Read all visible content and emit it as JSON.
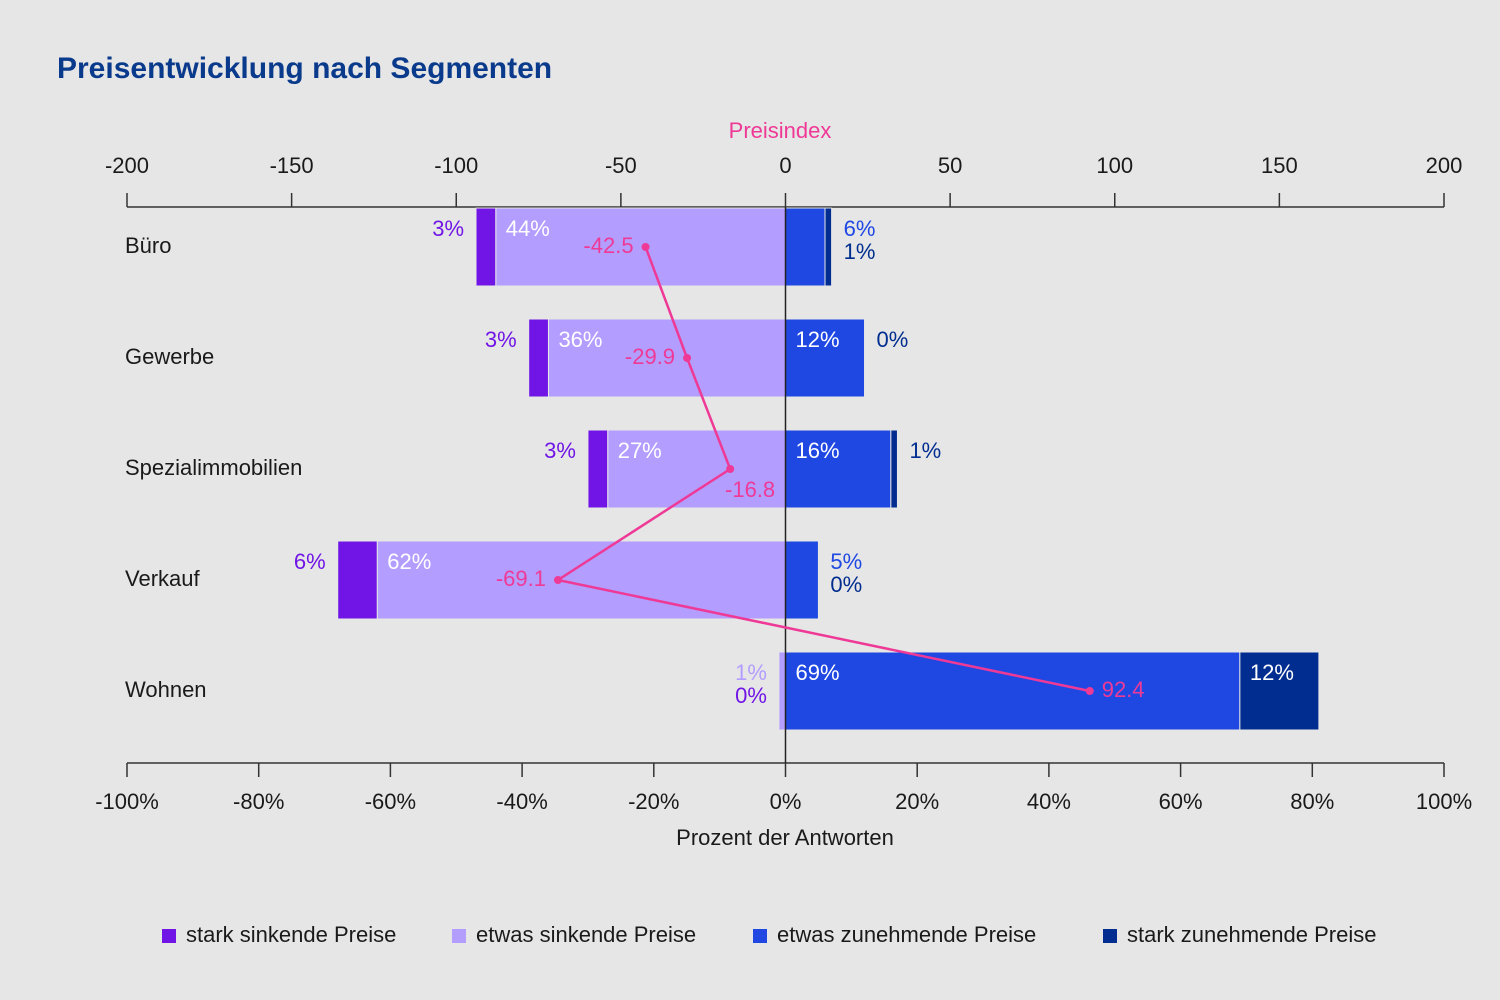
{
  "chart_data": {
    "type": "bar",
    "title": "Preisentwicklung nach Segmenten",
    "x2label": "Preisindex",
    "xlabel": "Prozent der Antworten",
    "categories": [
      "Büro",
      "Gewerbe",
      "Spezialimmobilien",
      "Verkauf",
      "Wohnen"
    ],
    "series": [
      {
        "name": "stark sinkende Preise",
        "color": "#7015e6",
        "values": [
          3,
          3,
          3,
          6,
          0
        ],
        "value_labels": [
          "3%",
          "3%",
          "3%",
          "6%",
          "0%"
        ]
      },
      {
        "name": "etwas sinkende Preise",
        "color": "#b39dff",
        "values": [
          44,
          36,
          27,
          62,
          1
        ],
        "value_labels": [
          "44%",
          "36%",
          "27%",
          "62%",
          "1%"
        ]
      },
      {
        "name": "etwas zunehmende Preise",
        "color": "#1f48e3",
        "values": [
          6,
          12,
          16,
          5,
          69
        ],
        "value_labels": [
          "6%",
          "12%",
          "16%",
          "5%",
          "69%"
        ]
      },
      {
        "name": "stark zunehmende Preise",
        "color": "#002d8f",
        "values": [
          1,
          0,
          1,
          0,
          12
        ],
        "value_labels": [
          "1%",
          "0%",
          "1%",
          "0%",
          "12%"
        ]
      }
    ],
    "line": {
      "color": "#ee3a96",
      "axis": "x2",
      "values": [
        -42.5,
        -29.9,
        -16.8,
        -69.1,
        92.4
      ]
    },
    "xlim": [
      -100,
      100
    ],
    "xticks": [
      {
        "value": -100,
        "label": "-100%"
      },
      {
        "value": -80,
        "label": "-80%"
      },
      {
        "value": -60,
        "label": "-60%"
      },
      {
        "value": -40,
        "label": "-40%"
      },
      {
        "value": -20,
        "label": "-20%"
      },
      {
        "value": 0,
        "label": "0%"
      },
      {
        "value": 20,
        "label": "20%"
      },
      {
        "value": 40,
        "label": "40%"
      },
      {
        "value": 60,
        "label": "60%"
      },
      {
        "value": 80,
        "label": "80%"
      },
      {
        "value": 100,
        "label": "100%"
      }
    ],
    "x2lim": [
      -200,
      200
    ],
    "x2ticks": [
      -200,
      -150,
      -100,
      -50,
      0,
      50,
      100,
      150,
      200
    ]
  }
}
